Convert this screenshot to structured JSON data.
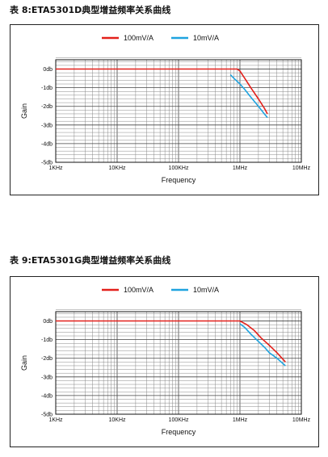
{
  "chart_data": [
    {
      "type": "line",
      "caption": "表 8:ETA5301D典型增益频率关系曲线",
      "xlabel": "Frequency",
      "ylabel": "Gain",
      "xscale": "log",
      "xlim": [
        1000,
        10000000
      ],
      "ylim": [
        -5,
        0.5
      ],
      "xticks": [
        1000,
        10000,
        100000,
        1000000,
        10000000
      ],
      "xtick_labels": [
        "1KHz",
        "10KHz",
        "100KHz",
        "1MHz",
        "10MHz"
      ],
      "yticks": [
        0,
        -1,
        -2,
        -3,
        -4,
        -5
      ],
      "ytick_labels": [
        "0db",
        "-1db",
        "-2db",
        "-3db",
        "-4db",
        "-5db"
      ],
      "grid": true,
      "legend_position": "top-center",
      "series": [
        {
          "name": "100mV/A",
          "color": "#e3201b",
          "x": [
            1000,
            600000,
            900000,
            1000000,
            1200000,
            1500000,
            2000000,
            2500000,
            2800000
          ],
          "y": [
            0,
            0,
            0,
            -0.1,
            -0.5,
            -1.0,
            -1.6,
            -2.1,
            -2.4
          ]
        },
        {
          "name": "10mV/A",
          "color": "#1fa3df",
          "x": [
            700000,
            800000,
            1000000,
            1200000,
            1500000,
            2000000,
            2500000,
            2800000
          ],
          "y": [
            -0.3,
            -0.5,
            -0.8,
            -1.1,
            -1.5,
            -2.0,
            -2.4,
            -2.6
          ]
        }
      ]
    },
    {
      "type": "line",
      "caption": "表 9:ETA5301G典型增益频率关系曲线",
      "xlabel": "Frequency",
      "ylabel": "Gain",
      "xscale": "log",
      "xlim": [
        1000,
        10000000
      ],
      "ylim": [
        -5,
        0.5
      ],
      "xticks": [
        1000,
        10000,
        100000,
        1000000,
        10000000
      ],
      "xtick_labels": [
        "1KHz",
        "10KHz",
        "100KHz",
        "1MHz",
        "10MHz"
      ],
      "yticks": [
        0,
        -1,
        -2,
        -3,
        -4,
        -5
      ],
      "ytick_labels": [
        "0db",
        "-1db",
        "-2db",
        "-3db",
        "-4db",
        "-5db"
      ],
      "grid": true,
      "legend_position": "top-center",
      "series": [
        {
          "name": "100mV/A",
          "color": "#e3201b",
          "x": [
            1000,
            800000,
            1000000,
            1300000,
            1700000,
            2200000,
            3000000,
            4000000,
            5500000
          ],
          "y": [
            0,
            0,
            0,
            -0.2,
            -0.5,
            -0.9,
            -1.3,
            -1.7,
            -2.2
          ]
        },
        {
          "name": "10mV/A",
          "color": "#1fa3df",
          "x": [
            1000000,
            1200000,
            1500000,
            2000000,
            2500000,
            3000000,
            4000000,
            5500000
          ],
          "y": [
            -0.15,
            -0.35,
            -0.7,
            -1.1,
            -1.4,
            -1.7,
            -2.0,
            -2.4
          ]
        }
      ]
    }
  ]
}
